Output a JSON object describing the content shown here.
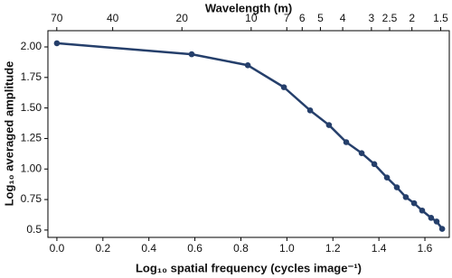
{
  "chart_data": {
    "type": "line",
    "xlabel": "Log₁₀ spatial frequency (cycles image⁻¹)",
    "ylabel": "Log₁₀ averaged amplitude",
    "x2label": "Wavelength (m)",
    "x": [
      0,
      0.586,
      0.83,
      0.987,
      1.101,
      1.183,
      1.258,
      1.325,
      1.38,
      1.435,
      1.478,
      1.517,
      1.553,
      1.588,
      1.627,
      1.651,
      1.675
    ],
    "series": [
      {
        "color": "#253f6b",
        "values": [
          2.03,
          1.94,
          1.85,
          1.67,
          1.48,
          1.36,
          1.22,
          1.13,
          1.04,
          0.93,
          0.85,
          0.77,
          0.72,
          0.66,
          0.6,
          0.57,
          0.51
        ]
      }
    ],
    "xlim": [
      -0.039,
      1.706
    ],
    "ylim": [
      0.44,
      2.133
    ],
    "x2lim": [
      76.5,
      1.376
    ],
    "x2log": true,
    "xticks": [
      {
        "value": 0,
        "label": "0.0"
      },
      0.2,
      0.4,
      0.6,
      0.8,
      {
        "value": 1,
        "label": "1.0"
      },
      1.2,
      1.4,
      1.6
    ],
    "yticks": [
      0.5,
      0.75,
      {
        "value": 1,
        "label": "1.00"
      },
      1.25,
      {
        "value": 1.5,
        "label": "1.50"
      },
      1.75,
      {
        "value": 2,
        "label": "2.00"
      }
    ],
    "x2ticks": [
      70,
      40,
      20,
      10,
      7,
      6,
      5,
      4,
      3,
      2.5,
      2,
      1.5
    ]
  }
}
